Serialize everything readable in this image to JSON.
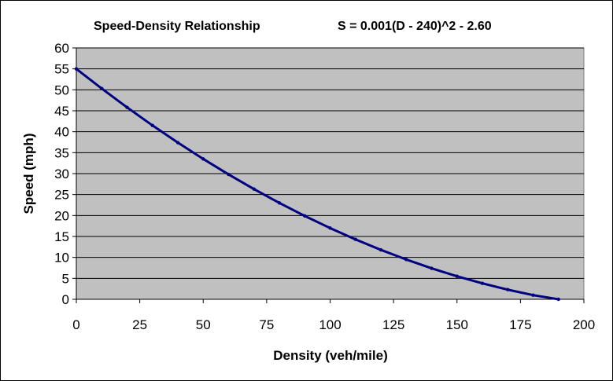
{
  "chart_data": {
    "type": "line",
    "title": "Speed-Density Relationship",
    "equation": "S = 0.001(D - 240)^2 - 2.60",
    "xlabel": "Density (veh/mile)",
    "ylabel": "Speed (mph)",
    "xlim": [
      0,
      200
    ],
    "ylim": [
      0,
      60
    ],
    "xticks": [
      "0",
      "25",
      "50",
      "75",
      "100",
      "125",
      "150",
      "175",
      "200"
    ],
    "yticks": [
      "0",
      "5",
      "10",
      "15",
      "20",
      "25",
      "30",
      "35",
      "40",
      "45",
      "50",
      "55",
      "60"
    ],
    "grid": "horizontal",
    "legend": "none",
    "series": [
      {
        "x": [
          0,
          10,
          20,
          30,
          40,
          50,
          60,
          70,
          80,
          90,
          100,
          110,
          120,
          130,
          140,
          150,
          160,
          170,
          180,
          190
        ],
        "y": [
          55.0,
          50.3,
          45.8,
          41.5,
          37.4,
          33.5,
          29.8,
          26.3,
          23.0,
          19.9,
          17.0,
          14.3,
          11.8,
          9.5,
          7.4,
          5.5,
          3.8,
          2.3,
          1.0,
          0.0
        ]
      }
    ],
    "colors": {
      "plot_area": "#C0C0C0",
      "line": "#000080",
      "gridline": "#000000"
    }
  }
}
